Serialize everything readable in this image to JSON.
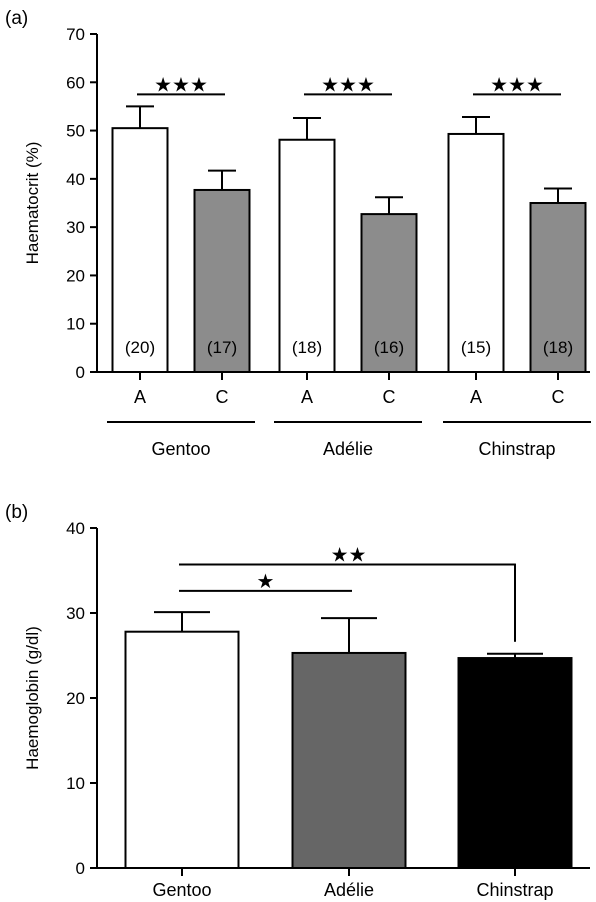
{
  "chart_data": [
    {
      "panel_label": "(a)",
      "type": "bar",
      "ylabel": "Haematocrit (%)",
      "ylim": [
        0,
        70
      ],
      "yticks": [
        0,
        10,
        20,
        30,
        40,
        50,
        60,
        70
      ],
      "groups": [
        "Gentoo",
        "Adélie",
        "Chinstrap"
      ],
      "categories": [
        "A",
        "C",
        "A",
        "C",
        "A",
        "C"
      ],
      "values": [
        50.5,
        37.7,
        48.1,
        32.7,
        49.3,
        35.0
      ],
      "errors": [
        4.5,
        4.0,
        4.5,
        3.5,
        3.5,
        3.0
      ],
      "sample_sizes": [
        "(20)",
        "(17)",
        "(18)",
        "(16)",
        "(15)",
        "(18)"
      ],
      "colors": [
        "#ffffff",
        "#8c8c8c",
        "#ffffff",
        "#8c8c8c",
        "#ffffff",
        "#8c8c8c"
      ],
      "significance": [
        {
          "label": "★★★",
          "from": 0,
          "to": 1,
          "level": 57.5
        },
        {
          "label": "★★★",
          "from": 2,
          "to": 3,
          "level": 57.5
        },
        {
          "label": "★★★",
          "from": 4,
          "to": 5,
          "level": 57.5
        }
      ]
    },
    {
      "panel_label": "(b)",
      "type": "bar",
      "ylabel": "Haemoglobin (g/dl)",
      "ylim": [
        0,
        40
      ],
      "yticks": [
        0,
        10,
        20,
        30,
        40
      ],
      "categories": [
        "Gentoo",
        "Adélie",
        "Chinstrap"
      ],
      "values": [
        27.8,
        25.3,
        24.7
      ],
      "errors": [
        2.3,
        4.1,
        0.5
      ],
      "colors": [
        "#ffffff",
        "#666666",
        "#000000"
      ],
      "significance": [
        {
          "label": "★",
          "from": 0,
          "to": 1,
          "level": 32.6
        },
        {
          "label": "★★",
          "from": 0,
          "to": 2,
          "level": 35.7
        }
      ]
    }
  ]
}
